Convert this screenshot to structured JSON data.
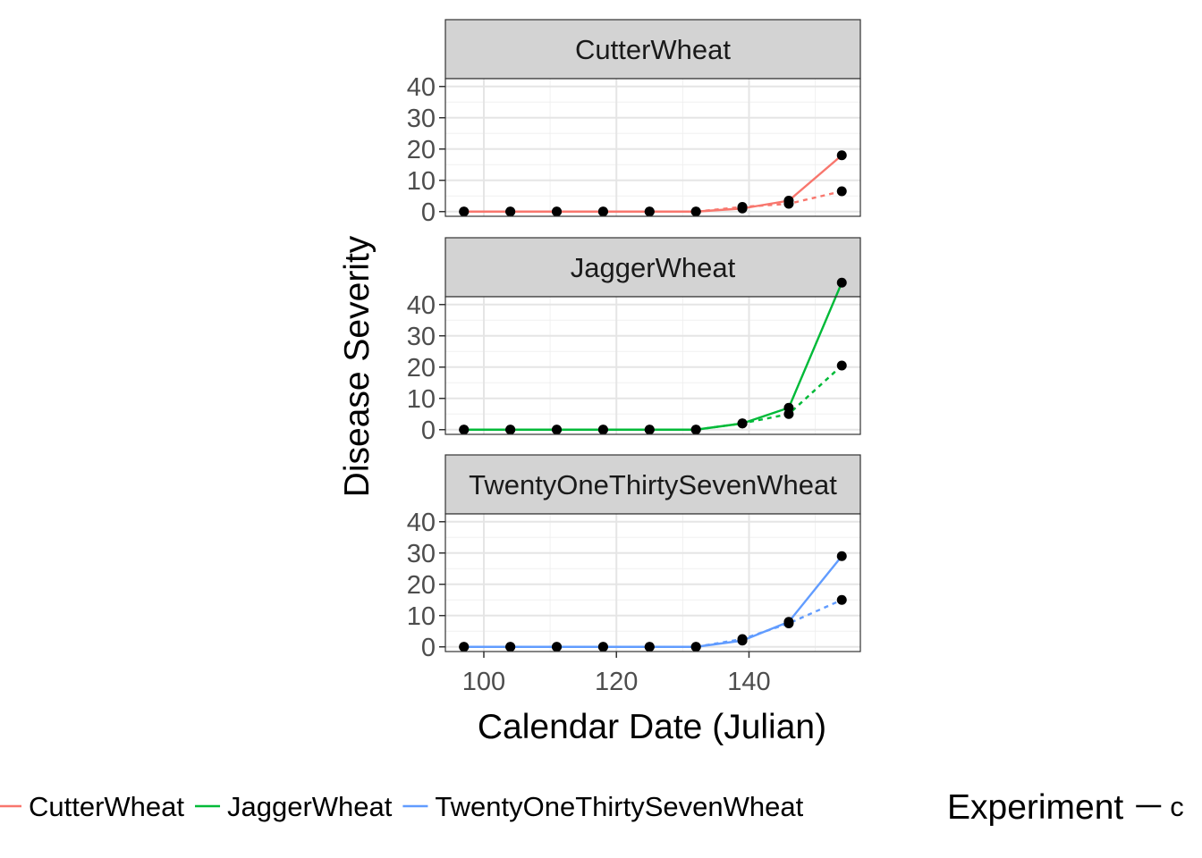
{
  "chart_data": {
    "type": "line",
    "facet_by": "variety",
    "xlabel": "Calendar Date (Julian)",
    "ylabel": "Disease Severity",
    "xlim": [
      94.2,
      156.8
    ],
    "ylim": [
      -1.5,
      42.5
    ],
    "x_ticks": [
      100,
      120,
      140
    ],
    "y_ticks": [
      0,
      10,
      20,
      30,
      40
    ],
    "grid": true,
    "legend_position": "bottom",
    "legend_title_2": "Experiment",
    "legend_item_2_label": "c",
    "x": [
      97,
      104,
      111,
      118,
      125,
      132,
      139,
      146,
      154
    ],
    "facets": [
      {
        "label": "CutterWheat",
        "color": "#F8766D",
        "series": [
          {
            "style": "solid",
            "values": [
              0,
              0,
              0,
              0,
              0,
              0,
              1,
              3.5,
              18
            ]
          },
          {
            "style": "dashed",
            "values": [
              0,
              0,
              0,
              0,
              0,
              0,
              1.5,
              2.5,
              6.5
            ]
          }
        ]
      },
      {
        "label": "JaggerWheat",
        "color": "#00BA38",
        "series": [
          {
            "style": "solid",
            "values": [
              0,
              0,
              0,
              0,
              0,
              0,
              2,
              7,
              47
            ]
          },
          {
            "style": "dashed",
            "values": [
              0,
              0,
              0,
              0,
              0,
              0,
              2,
              5,
              20.5
            ]
          }
        ]
      },
      {
        "label": "TwentyOneThirtySevenWheat",
        "color": "#619CFF",
        "series": [
          {
            "style": "solid",
            "values": [
              0,
              0,
              0,
              0,
              0,
              0,
              2,
              8,
              29
            ]
          },
          {
            "style": "dashed",
            "values": [
              0,
              0,
              0,
              0,
              0,
              0,
              2.5,
              7.5,
              15
            ]
          }
        ]
      }
    ],
    "legend": [
      {
        "label": "CutterWheat",
        "color": "#F8766D"
      },
      {
        "label": "JaggerWheat",
        "color": "#00BA38"
      },
      {
        "label": "TwentyOneThirtySevenWheat",
        "color": "#619CFF"
      }
    ]
  }
}
